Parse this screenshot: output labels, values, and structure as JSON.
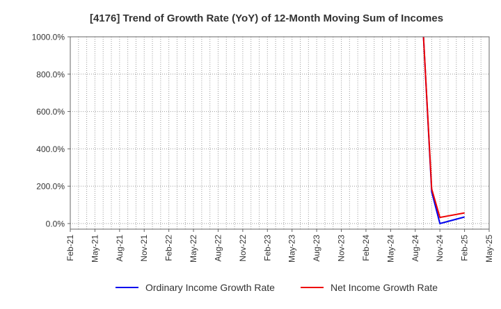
{
  "chart_data": {
    "type": "line",
    "title": "[4176]  Trend of Growth Rate (YoY) of 12-Month Moving Sum of Incomes",
    "xlabel": "",
    "ylabel": "",
    "x_ticks": [
      "Feb-21",
      "May-21",
      "Aug-21",
      "Nov-21",
      "Feb-22",
      "May-22",
      "Aug-22",
      "Nov-22",
      "Feb-23",
      "May-23",
      "Aug-23",
      "Nov-23",
      "Feb-24",
      "May-24",
      "Aug-24",
      "Nov-24",
      "Feb-25",
      "May-25"
    ],
    "y_ticks": [
      "0.0%",
      "200.0%",
      "400.0%",
      "600.0%",
      "800.0%",
      "1000.0%"
    ],
    "ylim": [
      -30,
      1000
    ],
    "grid": true,
    "legend_position": "bottom",
    "series": [
      {
        "name": "Ordinary Income Growth Rate",
        "color": "#0000ee",
        "points": [
          [
            "Sep-24",
            1000
          ],
          [
            "Oct-24",
            170
          ],
          [
            "Nov-24",
            0
          ],
          [
            "Feb-25",
            35
          ]
        ]
      },
      {
        "name": "Net Income Growth Rate",
        "color": "#ee0000",
        "points": [
          [
            "Sep-24",
            1000
          ],
          [
            "Oct-24",
            185
          ],
          [
            "Nov-24",
            33
          ],
          [
            "Feb-25",
            57
          ]
        ]
      }
    ]
  }
}
